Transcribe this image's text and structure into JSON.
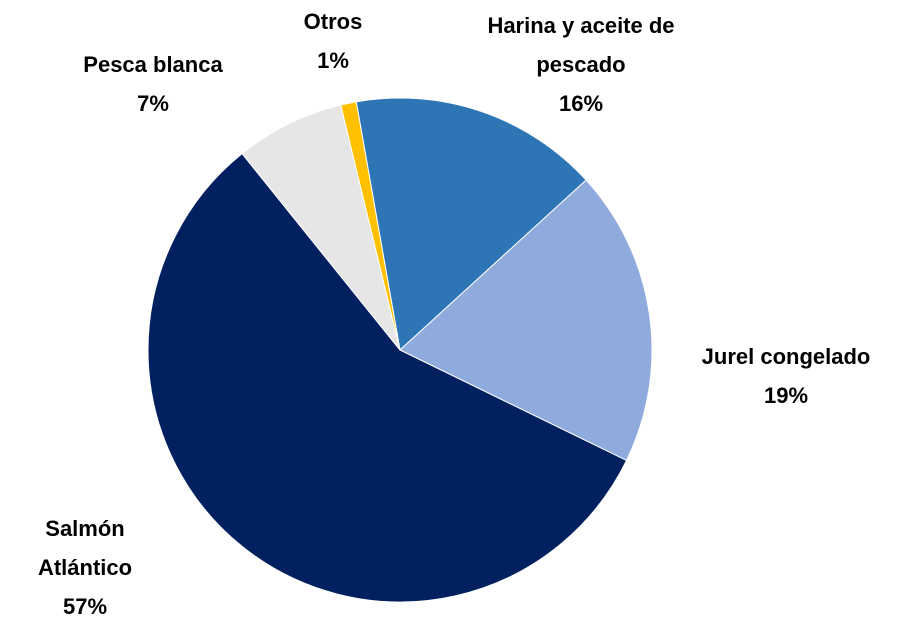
{
  "chart_data": {
    "type": "pie",
    "categories": [
      "Harina y aceite de pescado",
      "Jurel congelado",
      "Salmón Atlántico",
      "Pesca blanca",
      "Otros"
    ],
    "values": [
      16,
      19,
      57,
      7,
      1
    ],
    "value_labels": [
      "16%",
      "19%",
      "57%",
      "7%",
      "1%"
    ],
    "colors": [
      "#2e75b6",
      "#8faadc",
      "#002060",
      "#e7e6e6",
      "#ffc000"
    ]
  }
}
